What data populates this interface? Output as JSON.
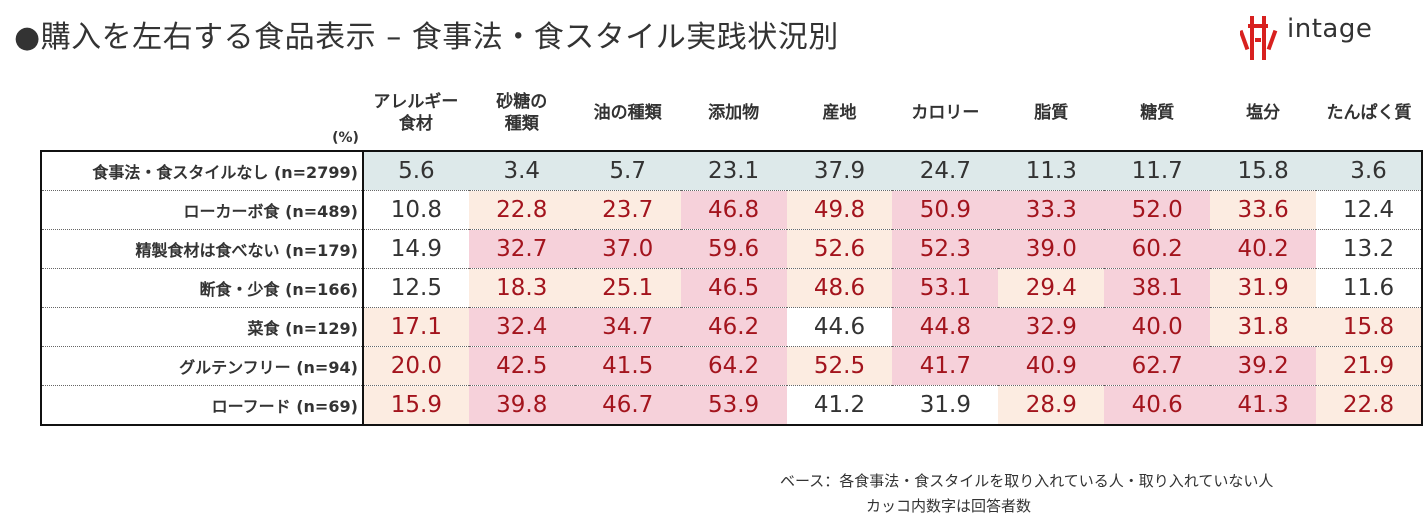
{
  "title": "●購入を左右する食品表示 – 食事法・食スタイル実践状況別",
  "logo": {
    "text": "intage"
  },
  "chart_data": {
    "type": "table",
    "unit_label": "(%)",
    "columns": [
      "アレルギー\n食材",
      "砂糖の\n種類",
      "油の種類",
      "添加物",
      "産地",
      "カロリー",
      "脂質",
      "糖質",
      "塩分",
      "たんぱく質"
    ],
    "rows": [
      {
        "label": "食事法・食スタイルなし (n=2799)",
        "values": [
          5.6,
          3.4,
          5.7,
          23.1,
          37.9,
          24.7,
          11.3,
          11.7,
          15.8,
          3.6
        ]
      },
      {
        "label": "ローカーボ食 (n=489)",
        "values": [
          10.8,
          22.8,
          23.7,
          46.8,
          49.8,
          50.9,
          33.3,
          52.0,
          33.6,
          12.4
        ]
      },
      {
        "label": "精製食材は食べない (n=179)",
        "values": [
          14.9,
          32.7,
          37.0,
          59.6,
          52.6,
          52.3,
          39.0,
          60.2,
          40.2,
          13.2
        ]
      },
      {
        "label": "断食・少食 (n=166)",
        "values": [
          12.5,
          18.3,
          25.1,
          46.5,
          48.6,
          53.1,
          29.4,
          38.1,
          31.9,
          11.6
        ]
      },
      {
        "label": "菜食 (n=129)",
        "values": [
          17.1,
          32.4,
          34.7,
          46.2,
          44.6,
          44.8,
          32.9,
          40.0,
          31.8,
          15.8
        ]
      },
      {
        "label": "グルテンフリー (n=94)",
        "values": [
          20.0,
          42.5,
          41.5,
          64.2,
          52.5,
          41.7,
          40.9,
          62.7,
          39.2,
          21.9
        ]
      },
      {
        "label": "ローフード (n=69)",
        "values": [
          15.9,
          39.8,
          46.7,
          53.9,
          41.2,
          31.9,
          28.9,
          40.6,
          41.3,
          22.8
        ]
      }
    ],
    "cell_styles": [
      [
        "base",
        "base",
        "base",
        "base",
        "base",
        "base",
        "base",
        "base",
        "base",
        "base"
      ],
      [
        "plain",
        "light",
        "light",
        "strong",
        "light",
        "strong",
        "strong",
        "strong",
        "light",
        "plain"
      ],
      [
        "plain",
        "strong",
        "strong",
        "strong",
        "light",
        "strong",
        "strong",
        "strong",
        "strong",
        "plain"
      ],
      [
        "plain",
        "light",
        "light",
        "strong",
        "light",
        "strong",
        "light",
        "strong",
        "light",
        "plain"
      ],
      [
        "light",
        "strong",
        "strong",
        "strong",
        "plain",
        "strong",
        "strong",
        "strong",
        "light",
        "light"
      ],
      [
        "light",
        "strong",
        "strong",
        "strong",
        "light",
        "strong",
        "strong",
        "strong",
        "strong",
        "light"
      ],
      [
        "light",
        "strong",
        "strong",
        "strong",
        "plain",
        "plain",
        "light",
        "strong",
        "strong",
        "light"
      ]
    ],
    "colors": {
      "base_bg": "#dde9ea",
      "base_text": "#333333",
      "plain_bg": "#ffffff",
      "plain_text": "#333333",
      "light_bg": "#fcece1",
      "light_text": "#a3141d",
      "strong_bg": "#f6d1da",
      "strong_text": "#a3141d"
    }
  },
  "notes": [
    "ベース：各食事法・食スタイルを取り入れている人・取り入れていない人",
    "カッコ内数字は回答者数"
  ]
}
